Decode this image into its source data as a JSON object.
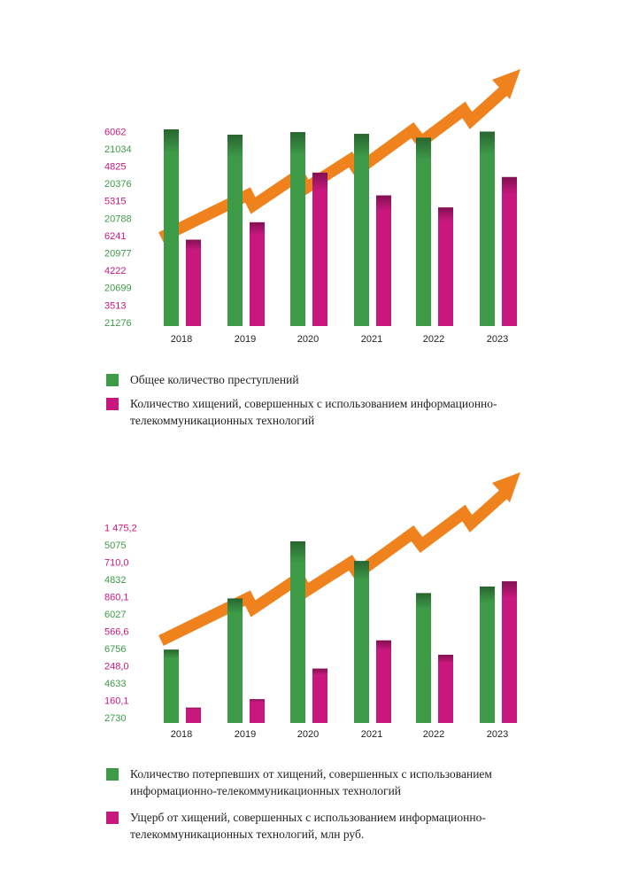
{
  "chart_data": [
    {
      "type": "bar",
      "categories": [
        "2018",
        "2019",
        "2020",
        "2021",
        "2022",
        "2023"
      ],
      "series": [
        {
          "name": "Общее количество преступлений",
          "color": "#3d9b48",
          "values": [
            21276,
            20699,
            20977,
            20788,
            20376,
            21034
          ]
        },
        {
          "name": "Количество хищений, совершенных с использованием информационно-телекоммуникационных технологий",
          "color": "#c8187e",
          "values": [
            3513,
            4222,
            6241,
            5315,
            4825,
            6062
          ]
        }
      ]
    },
    {
      "type": "bar",
      "categories": [
        "2018",
        "2019",
        "2020",
        "2021",
        "2022",
        "2023"
      ],
      "series": [
        {
          "name": "Количество потерпевших от хищений, совершенных с использованием информационно-телекоммуникационных технологий",
          "color": "#3d9b48",
          "values": [
            2730,
            4633,
            6756,
            6027,
            4832,
            5075
          ]
        },
        {
          "name": "Ущерб от хищений, совершенных с использованием информационно-телекоммуникационных технологий, млн руб.",
          "color": "#c8187e",
          "values": [
            160.1,
            248.0,
            566.6,
            860.1,
            710.0,
            1475.2
          ],
          "value_labels": [
            "160,1",
            "248,0",
            "566,6",
            "860,1",
            "710,0",
            "1 475,2"
          ]
        }
      ]
    }
  ]
}
